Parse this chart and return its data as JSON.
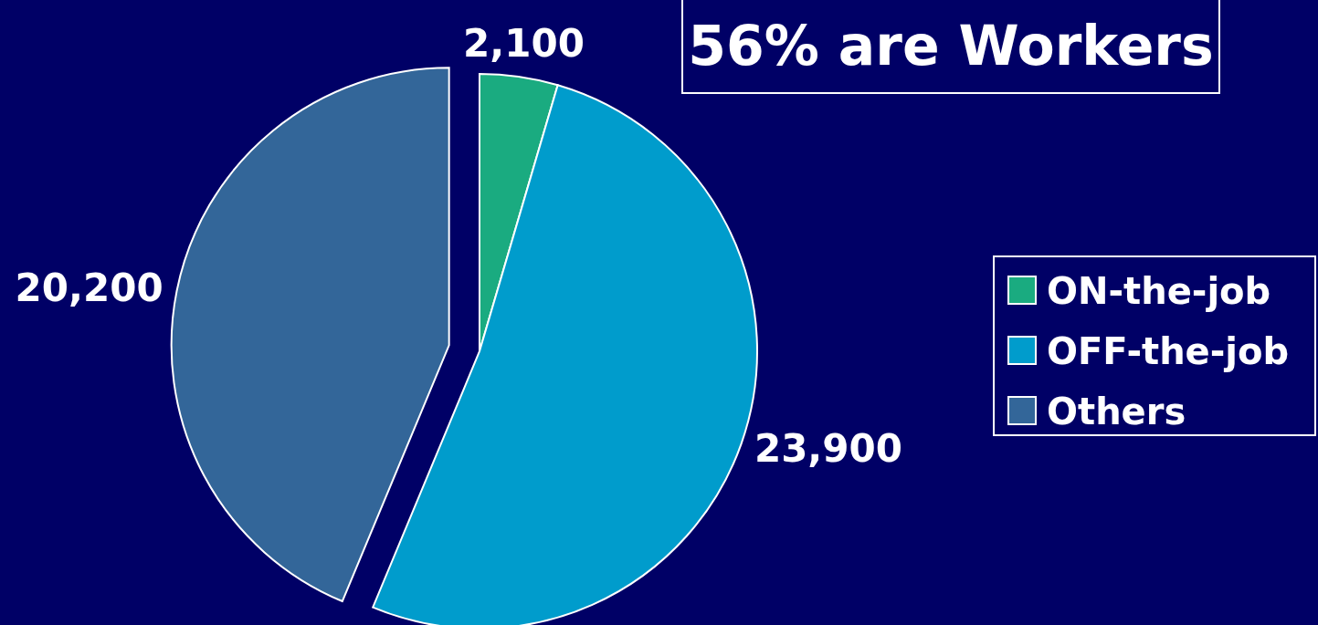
{
  "chart_data": {
    "type": "pie",
    "title": "56% are Workers",
    "categories": [
      "ON-the-job",
      "OFF-the-job",
      "Others"
    ],
    "values": [
      2100,
      23900,
      20200
    ],
    "colors": [
      "#1aab80",
      "#009ccc",
      "#336699"
    ],
    "value_labels": [
      "2,100",
      "23,900",
      "20,200"
    ],
    "legend": "right"
  }
}
